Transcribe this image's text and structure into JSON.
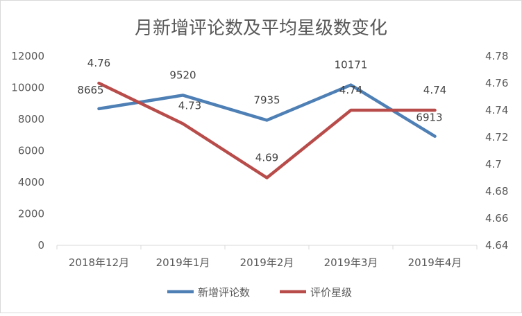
{
  "chart_data": {
    "type": "line",
    "title": "月新增评论数及平均星级数变化",
    "categories": [
      "2018年12月",
      "2019年1月",
      "2019年2月",
      "2019年3月",
      "2019年4月"
    ],
    "series": [
      {
        "name": "新增评论数",
        "axis": "left",
        "color": "#4e7fb5",
        "values": [
          8665,
          9520,
          7935,
          10171,
          6913
        ],
        "labels": [
          "8665",
          "9520",
          "7935",
          "10171",
          "6913"
        ]
      },
      {
        "name": "评价星级",
        "axis": "right",
        "color": "#b84c4a",
        "values": [
          4.76,
          4.73,
          4.69,
          4.74,
          4.74
        ],
        "labels": [
          "4.76",
          "4.73",
          "4.69",
          "4.74",
          "4.74"
        ]
      }
    ],
    "y_left": {
      "range": [
        0,
        12000
      ],
      "ticks": [
        "0",
        "2000",
        "4000",
        "6000",
        "8000",
        "10000",
        "12000"
      ]
    },
    "y_right": {
      "range": [
        4.64,
        4.78
      ],
      "ticks": [
        "4.64",
        "4.66",
        "4.68",
        "4.7",
        "4.72",
        "4.74",
        "4.76",
        "4.78"
      ]
    },
    "grid": false,
    "legend": "bottom"
  }
}
